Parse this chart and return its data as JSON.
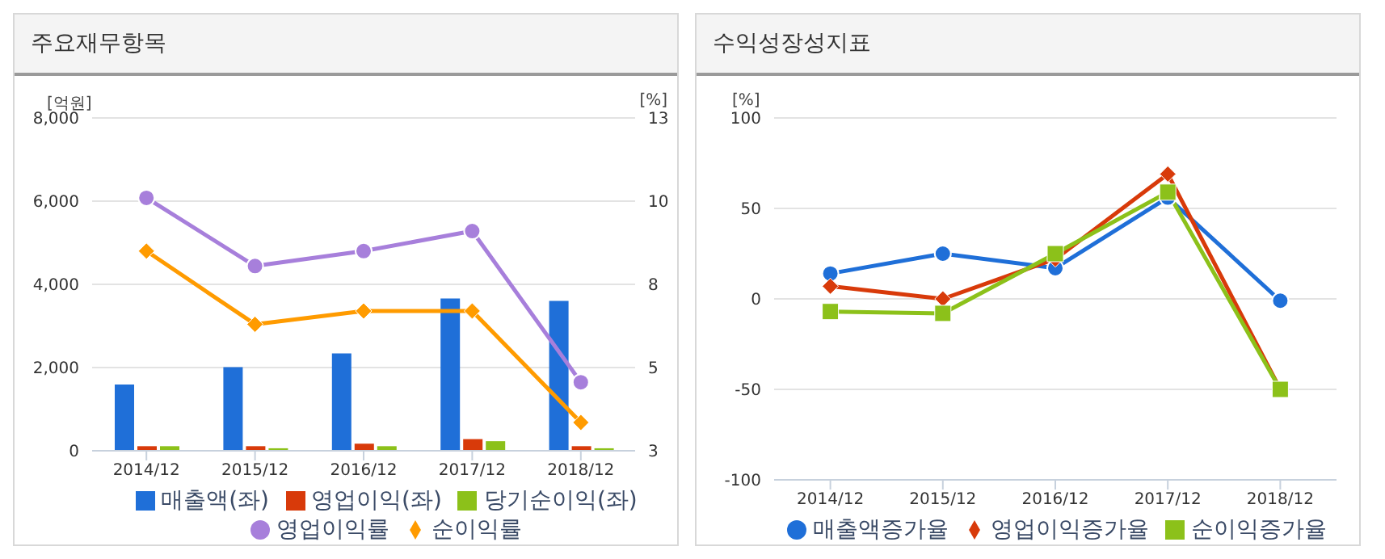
{
  "chart_data": [
    {
      "type": "bar",
      "title": "주요재무항목",
      "ylabel": "[억원]",
      "y2label": "[%]",
      "categories": [
        "2014/12",
        "2015/12",
        "2016/12",
        "2017/12",
        "2018/12"
      ],
      "series": [
        {
          "name": "매출액(좌)",
          "color": "#1f6fd8",
          "values": [
            1590,
            2010,
            2340,
            3660,
            3600
          ]
        },
        {
          "name": "영업이익(좌)",
          "color": "#d83a0a",
          "values": [
            110,
            110,
            170,
            280,
            110
          ]
        },
        {
          "name": "당기순이익(좌)",
          "color": "#8cc11a",
          "values": [
            110,
            60,
            110,
            230,
            60
          ]
        },
        {
          "name": "영업이익률",
          "type": "line",
          "axis": "y2",
          "marker": "circle",
          "color": "#a77fdb",
          "values": [
            10.6,
            8.55,
            9.0,
            9.6,
            5.06
          ]
        },
        {
          "name": "순이익률",
          "type": "line",
          "axis": "y2",
          "marker": "diamond",
          "color": "#ff9b00",
          "values": [
            9.0,
            6.8,
            7.2,
            7.2,
            3.85
          ]
        }
      ],
      "ylim": [
        0,
        8000
      ],
      "yticks": [
        0,
        {
          "value": 2000,
          "label": "2,000"
        },
        {
          "value": 4000,
          "label": "4,000"
        },
        {
          "value": 6000,
          "label": "6,000"
        },
        {
          "value": 8000,
          "label": "8,000"
        }
      ],
      "y2lim": [
        3,
        13
      ],
      "y2ticks": [
        3,
        {
          "value": 5.5,
          "label": "5"
        },
        8,
        {
          "value": 10.5,
          "label": "10"
        },
        13
      ],
      "grid": "y",
      "legend": "bottom"
    },
    {
      "type": "line",
      "title": "수익성장성지표",
      "ylabel": "[%]",
      "categories": [
        "2014/12",
        "2015/12",
        "2016/12",
        "2017/12",
        "2018/12"
      ],
      "series": [
        {
          "name": "매출액증가율",
          "marker": "circle",
          "color": "#1f6fd8",
          "values": [
            14,
            25,
            17,
            56,
            -1
          ]
        },
        {
          "name": "영업이익증가율",
          "marker": "diamond",
          "color": "#d83a0a",
          "values": [
            7,
            0,
            22,
            69,
            -50
          ]
        },
        {
          "name": "순이익증가율",
          "marker": "square",
          "color": "#8cc11a",
          "values": [
            -7,
            -8,
            25,
            59,
            -50
          ]
        }
      ],
      "ylim": [
        -100,
        100
      ],
      "yticks": [
        -100,
        -50,
        0,
        50,
        100
      ],
      "grid": "y",
      "legend": "bottom"
    }
  ]
}
